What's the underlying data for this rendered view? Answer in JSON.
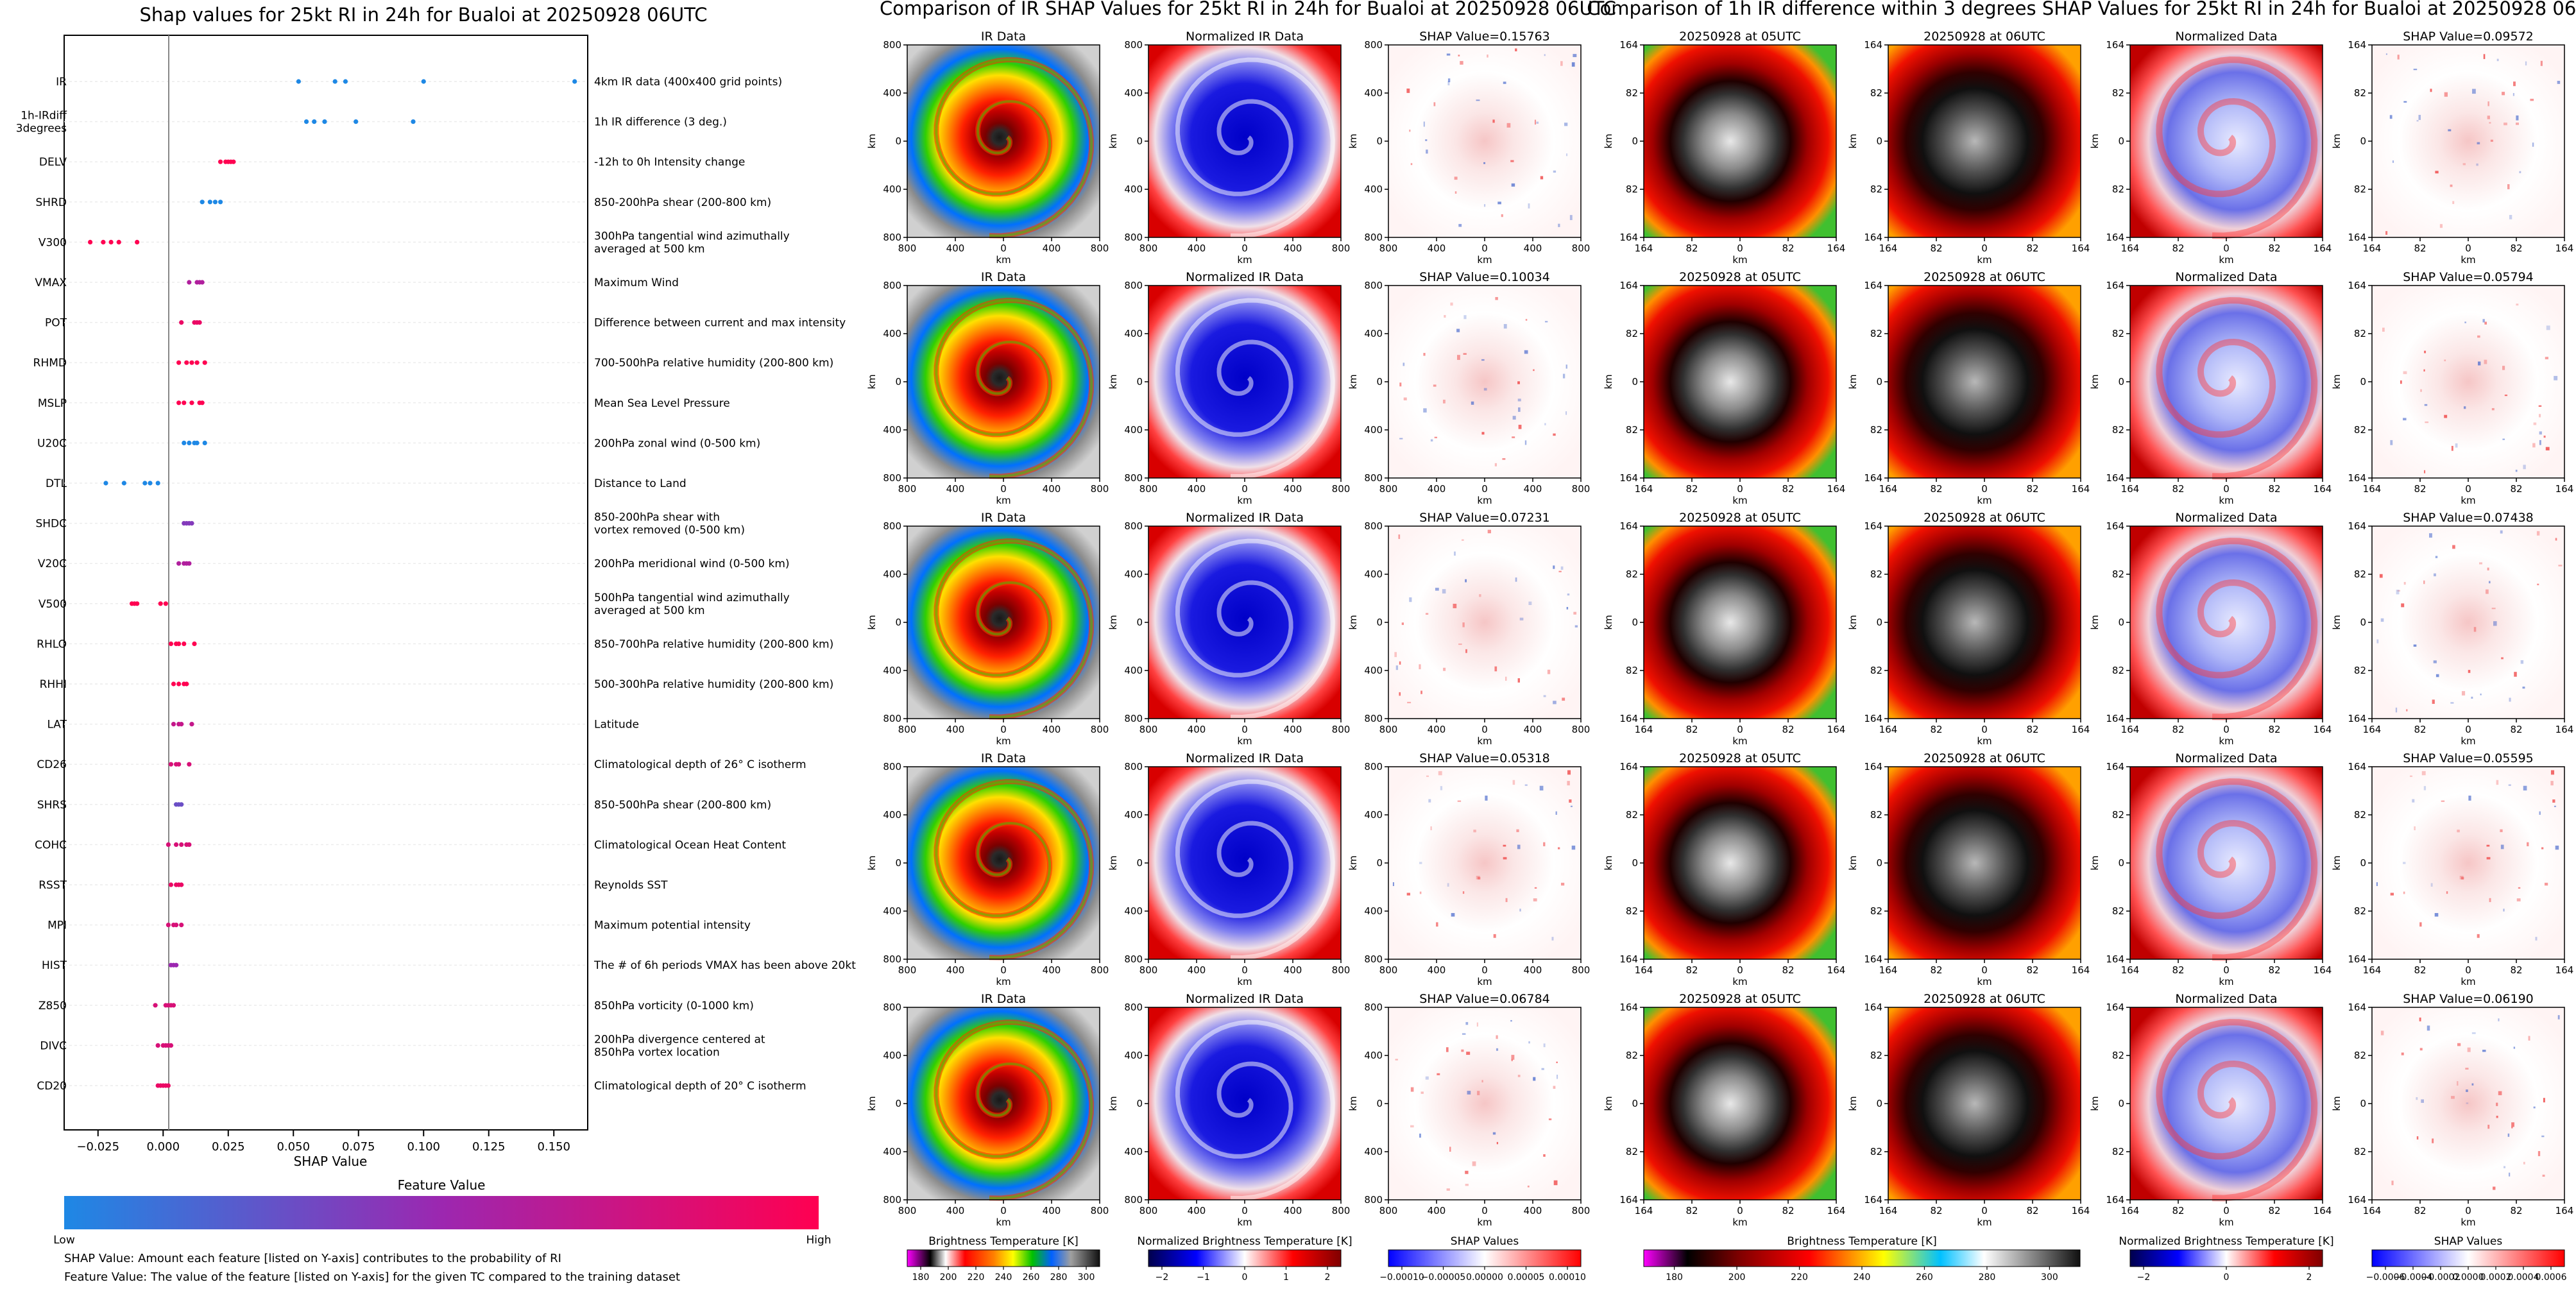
{
  "left_panel": {
    "title": "Shap values for 25kt RI in 24h for Bualoi at 20250928 06UTC",
    "xlabel": "SHAP Value",
    "xticks": [
      "−0.025",
      "0.000",
      "0.025",
      "0.050",
      "0.075",
      "0.100",
      "0.125",
      "0.150"
    ],
    "colorbar_title": "Feature Value",
    "colorbar_low": "Low",
    "colorbar_high": "High",
    "footnote_1": "SHAP Value: Amount each feature [listed on Y-axis] contributes to the probability of RI",
    "footnote_2": "Feature Value: The value of the feature [listed on Y-axis] for the given TC compared to the training dataset"
  },
  "mid_panel": {
    "title": "Comparison of IR SHAP Values for 25kt RI in 24h for Bualoi at 20250928 06UTC",
    "col_titles": [
      "IR Data",
      "Normalized IR Data"
    ],
    "shap_titles": [
      "SHAP Value=0.15763",
      "SHAP Value=0.10034",
      "SHAP Value=0.07231",
      "SHAP Value=0.05318",
      "SHAP Value=0.06784"
    ],
    "axis_label": "km",
    "ticks": [
      "800",
      "400",
      "0",
      "400",
      "800"
    ],
    "cbars": [
      {
        "label": "Brightness Temperature [K]",
        "ticks": [
          "180",
          "200",
          "220",
          "240",
          "260",
          "280",
          "300"
        ]
      },
      {
        "label": "Normalized Brightness Temperature [K]",
        "ticks": [
          "−2",
          "−1",
          "0",
          "1",
          "2"
        ]
      },
      {
        "label": "SHAP Values",
        "ticks": [
          "−0.00010",
          "−0.00005",
          "0.00000",
          "0.00005",
          "0.00010"
        ]
      }
    ]
  },
  "right_panel": {
    "title": "Comparison of 1h IR difference within 3 degrees SHAP Values for 25kt RI in 24h for Bualoi at 20250928 06UTC",
    "col_titles": [
      "20250928 at 05UTC",
      "20250928 at 06UTC",
      "Normalized Data"
    ],
    "shap_titles": [
      "SHAP Value=0.09572",
      "SHAP Value=0.05794",
      "SHAP Value=0.07438",
      "SHAP Value=0.05595",
      "SHAP Value=0.06190"
    ],
    "axis_label": "km",
    "ticks": [
      "164",
      "82",
      "0",
      "82",
      "164"
    ],
    "cbars": [
      {
        "label": "Brightness Temperature [K]",
        "ticks": [
          "180",
          "200",
          "220",
          "240",
          "260",
          "280",
          "300"
        ]
      },
      {
        "label": "Normalized Brightness Temperature [K]",
        "ticks": [
          "−2",
          "0",
          "2"
        ]
      },
      {
        "label": "SHAP Values",
        "ticks": [
          "−0.0006",
          "−0.0004",
          "−0.0002",
          "0.0000",
          "0.0002",
          "0.0004",
          "0.0006"
        ]
      }
    ]
  },
  "colors": {
    "low": "#1e88e5",
    "mid": "#9c27b0",
    "high": "#ff0051"
  },
  "chart_data": [
    {
      "type": "scatter",
      "title": "Shap values for 25kt RI in 24h for Bualoi at 20250928 06UTC",
      "xlabel": "SHAP Value",
      "xlim": [
        -0.038,
        0.163
      ],
      "color_scale": "feature value (Low = blue, High = pink)",
      "features": [
        {
          "name": "IR",
          "desc": "4km IR data (400x400 grid points)",
          "points": [
            [
              0.052,
              0
            ],
            [
              0.066,
              0
            ],
            [
              0.07,
              0
            ],
            [
              0.1,
              0
            ],
            [
              0.158,
              0
            ]
          ]
        },
        {
          "name": "1h-IRdiff\n3degrees",
          "desc": "1h IR difference (3 deg.)",
          "points": [
            [
              0.055,
              0
            ],
            [
              0.058,
              0
            ],
            [
              0.062,
              0
            ],
            [
              0.074,
              0
            ],
            [
              0.096,
              0
            ]
          ]
        },
        {
          "name": "DELV",
          "desc": "-12h to 0h Intensity change",
          "points": [
            [
              0.022,
              1
            ],
            [
              0.024,
              1
            ],
            [
              0.025,
              1
            ],
            [
              0.026,
              1
            ],
            [
              0.027,
              1
            ]
          ]
        },
        {
          "name": "SHRD",
          "desc": "850-200hPa shear (200-800 km)",
          "points": [
            [
              0.015,
              0
            ],
            [
              0.018,
              0
            ],
            [
              0.02,
              0
            ],
            [
              0.022,
              0
            ]
          ]
        },
        {
          "name": "V300",
          "desc": "300hPa tangential wind azimuthally\naveraged at 500 km",
          "points": [
            [
              -0.028,
              1
            ],
            [
              -0.023,
              1
            ],
            [
              -0.02,
              1
            ],
            [
              -0.017,
              1
            ],
            [
              -0.01,
              1
            ]
          ]
        },
        {
          "name": "VMAX",
          "desc": "Maximum Wind",
          "points": [
            [
              0.01,
              0.6
            ],
            [
              0.013,
              0.6
            ],
            [
              0.014,
              0.6
            ],
            [
              0.015,
              0.6
            ]
          ]
        },
        {
          "name": "POT",
          "desc": "Difference between current and max intensity",
          "points": [
            [
              0.007,
              0.9
            ],
            [
              0.012,
              0.9
            ],
            [
              0.013,
              0.9
            ],
            [
              0.014,
              0.9
            ]
          ]
        },
        {
          "name": "RHMD",
          "desc": "700-500hPa relative humidity (200-800 km)",
          "points": [
            [
              0.006,
              1
            ],
            [
              0.009,
              1
            ],
            [
              0.011,
              1
            ],
            [
              0.013,
              1
            ],
            [
              0.016,
              1
            ]
          ]
        },
        {
          "name": "MSLP",
          "desc": "Mean Sea Level Pressure",
          "points": [
            [
              0.006,
              1
            ],
            [
              0.008,
              1
            ],
            [
              0.011,
              1
            ],
            [
              0.014,
              1
            ],
            [
              0.015,
              1
            ]
          ]
        },
        {
          "name": "U20C",
          "desc": "200hPa zonal wind (0-500 km)",
          "points": [
            [
              0.008,
              0
            ],
            [
              0.01,
              0
            ],
            [
              0.012,
              0
            ],
            [
              0.013,
              0
            ],
            [
              0.016,
              0
            ]
          ]
        },
        {
          "name": "DTL",
          "desc": "Distance to Land",
          "points": [
            [
              -0.022,
              0
            ],
            [
              -0.015,
              0
            ],
            [
              -0.007,
              0
            ],
            [
              -0.005,
              0
            ],
            [
              -0.002,
              0
            ]
          ]
        },
        {
          "name": "SHDC",
          "desc": "850-200hPa shear with\nvortex removed (0-500 km)",
          "points": [
            [
              0.008,
              0.4
            ],
            [
              0.009,
              0.4
            ],
            [
              0.01,
              0.4
            ],
            [
              0.011,
              0.4
            ]
          ]
        },
        {
          "name": "V20C",
          "desc": "200hPa meridional wind (0-500 km)",
          "points": [
            [
              0.006,
              0.6
            ],
            [
              0.008,
              0.6
            ],
            [
              0.009,
              0.6
            ],
            [
              0.01,
              0.6
            ]
          ]
        },
        {
          "name": "V500",
          "desc": "500hPa tangential wind azimuthally\naveraged at 500 km",
          "points": [
            [
              -0.012,
              1
            ],
            [
              -0.011,
              1
            ],
            [
              -0.01,
              1
            ],
            [
              -0.001,
              1
            ],
            [
              0.001,
              1
            ]
          ]
        },
        {
          "name": "RHLO",
          "desc": "850-700hPa relative humidity (200-800 km)",
          "points": [
            [
              0.003,
              1
            ],
            [
              0.005,
              1
            ],
            [
              0.006,
              1
            ],
            [
              0.008,
              1
            ],
            [
              0.012,
              1
            ]
          ]
        },
        {
          "name": "RHHI",
          "desc": "500-300hPa relative humidity (200-800 km)",
          "points": [
            [
              0.004,
              1
            ],
            [
              0.006,
              1
            ],
            [
              0.008,
              1
            ],
            [
              0.009,
              1
            ]
          ]
        },
        {
          "name": "LAT",
          "desc": "Latitude",
          "points": [
            [
              0.004,
              0.7
            ],
            [
              0.006,
              0.7
            ],
            [
              0.007,
              0.7
            ],
            [
              0.011,
              0.7
            ]
          ]
        },
        {
          "name": "CD26",
          "desc": "Climatological depth of 26° C isotherm",
          "points": [
            [
              0.003,
              0.8
            ],
            [
              0.005,
              0.8
            ],
            [
              0.006,
              0.8
            ],
            [
              0.01,
              0.8
            ]
          ]
        },
        {
          "name": "SHRS",
          "desc": "850-500hPa shear (200-800 km)",
          "points": [
            [
              0.005,
              0.3
            ],
            [
              0.006,
              0.3
            ],
            [
              0.007,
              0.3
            ]
          ]
        },
        {
          "name": "COHC",
          "desc": "Climatological Ocean Heat Content",
          "points": [
            [
              0.002,
              0.8
            ],
            [
              0.005,
              0.8
            ],
            [
              0.007,
              0.8
            ],
            [
              0.009,
              0.8
            ],
            [
              0.01,
              0.8
            ]
          ]
        },
        {
          "name": "RSST",
          "desc": "Reynolds SST",
          "points": [
            [
              0.003,
              0.9
            ],
            [
              0.005,
              0.9
            ],
            [
              0.006,
              0.9
            ],
            [
              0.007,
              0.9
            ]
          ]
        },
        {
          "name": "MPI",
          "desc": "Maximum potential intensity",
          "points": [
            [
              0.002,
              0.8
            ],
            [
              0.004,
              0.8
            ],
            [
              0.005,
              0.8
            ],
            [
              0.007,
              0.8
            ]
          ]
        },
        {
          "name": "HIST",
          "desc": "The # of 6h periods VMAX has been above 20kt",
          "points": [
            [
              0.003,
              0.5
            ],
            [
              0.004,
              0.5
            ],
            [
              0.005,
              0.5
            ]
          ]
        },
        {
          "name": "Z850",
          "desc": "850hPa vorticity (0-1000 km)",
          "points": [
            [
              -0.003,
              0.8
            ],
            [
              0.001,
              0.8
            ],
            [
              0.002,
              0.8
            ],
            [
              0.003,
              0.8
            ],
            [
              0.004,
              0.8
            ]
          ]
        },
        {
          "name": "DIVC",
          "desc": "200hPa divergence centered at\n850hPa vortex location",
          "points": [
            [
              -0.002,
              0.8
            ],
            [
              0.0,
              0.8
            ],
            [
              0.001,
              0.8
            ],
            [
              0.002,
              0.8
            ],
            [
              0.003,
              0.8
            ]
          ]
        },
        {
          "name": "CD20",
          "desc": "Climatological depth of 20° C isotherm",
          "points": [
            [
              -0.002,
              0.9
            ],
            [
              -0.001,
              0.9
            ],
            [
              0.0,
              0.9
            ],
            [
              0.001,
              0.9
            ],
            [
              0.002,
              0.9
            ]
          ]
        }
      ]
    }
  ]
}
